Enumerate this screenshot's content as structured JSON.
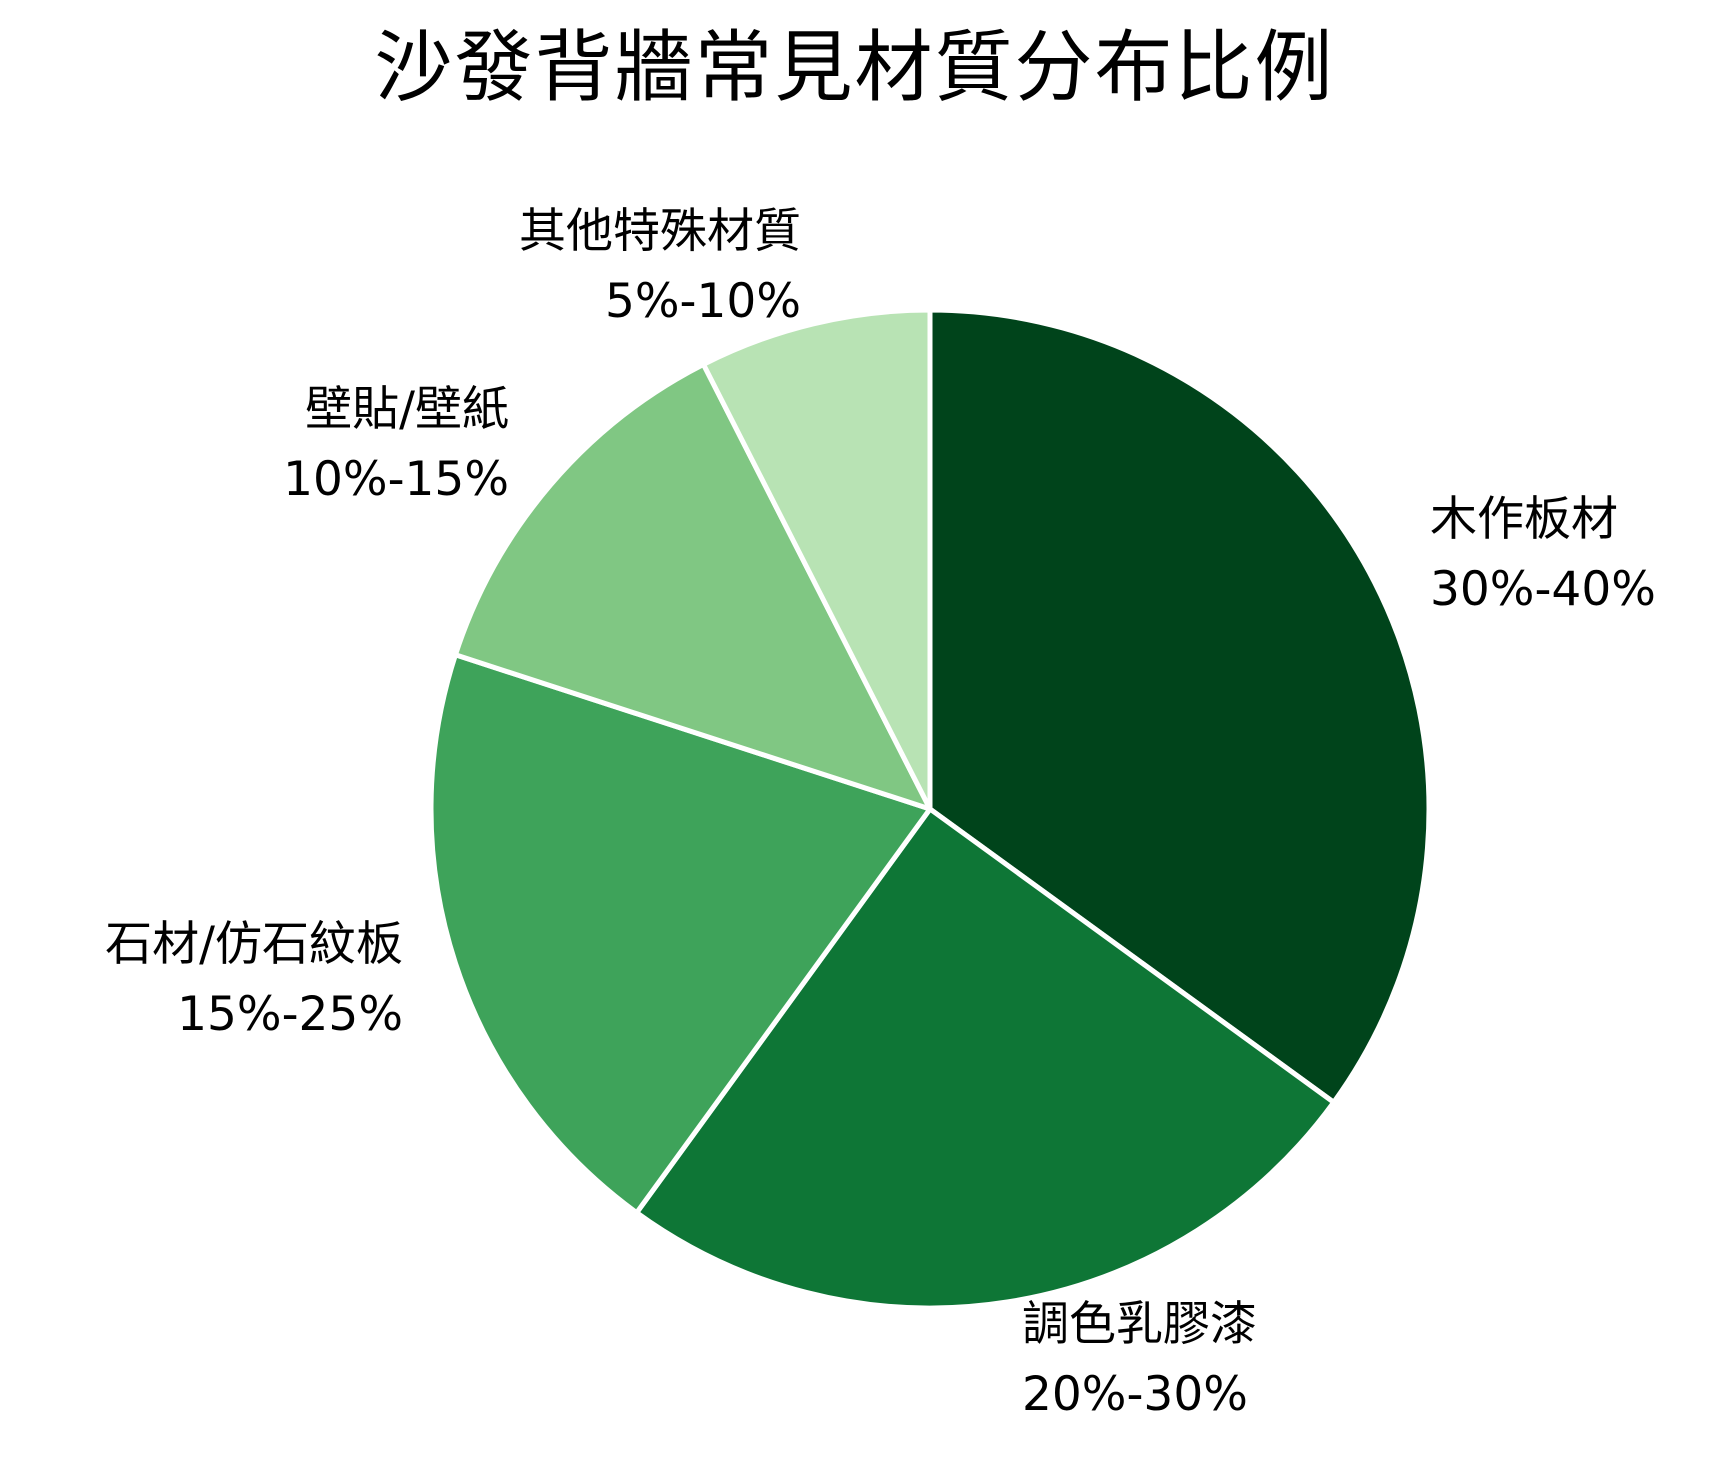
{
  "chart_data": {
    "type": "pie",
    "title": "沙發背牆常見材質分布比例",
    "start_angle_deg": 0,
    "direction": "clockwise",
    "categories": [
      "木作板材",
      "調色乳膠漆",
      "石材/仿石紋板",
      "壁貼/壁紙",
      "其他特殊材質"
    ],
    "range_labels": [
      "30%-40%",
      "20%-30%",
      "15%-25%",
      "10%-15%",
      "5%-10%"
    ],
    "values": [
      35,
      25,
      20,
      12.5,
      7.5
    ],
    "colors": [
      "#00441b",
      "#0e7636",
      "#3ea35a",
      "#80c783",
      "#b8e3b4"
    ],
    "legend": "none (inline labels)",
    "slice_border_color": "#ffffff"
  },
  "labels": [
    {
      "name": "木作板材",
      "range": "30%-40%"
    },
    {
      "name": "調色乳膠漆",
      "range": "20%-30%"
    },
    {
      "name": "石材/仿石紋板",
      "range": "15%-25%"
    },
    {
      "name": "壁貼/壁紙",
      "range": "10%-15%"
    },
    {
      "name": "其他特殊材質",
      "range": "5%-10%"
    }
  ]
}
